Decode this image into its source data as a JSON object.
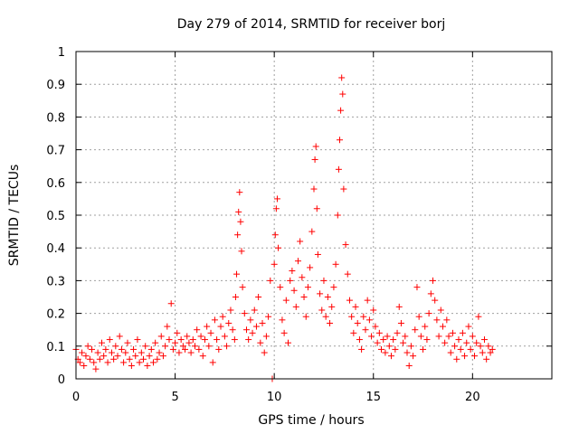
{
  "chart_data": {
    "type": "scatter",
    "title": "Day 279 of 2014, SRMTID for receiver borj",
    "xlabel": "GPS time / hours",
    "ylabel": "SRMTID / TECUs",
    "xlim": [
      0,
      24
    ],
    "ylim": [
      0,
      1
    ],
    "xticks": [
      0,
      5,
      10,
      15,
      20
    ],
    "yticks": [
      0,
      0.1,
      0.2,
      0.3,
      0.4,
      0.5,
      0.6,
      0.7,
      0.8,
      0.9,
      1
    ],
    "xtick_labels": [
      "0",
      "5",
      "10",
      "15",
      "20"
    ],
    "ytick_labels": [
      "0",
      "0.1",
      "0.2",
      "0.3",
      "0.4",
      "0.5",
      "0.6",
      "0.7",
      "0.8",
      "0.9",
      "1"
    ],
    "grid": true,
    "marker": "+",
    "color": "#ff0000",
    "series": [
      {
        "name": "SRMTID",
        "points": [
          [
            0.0,
            0.09
          ],
          [
            0.1,
            0.06
          ],
          [
            0.2,
            0.05
          ],
          [
            0.3,
            0.08
          ],
          [
            0.4,
            0.04
          ],
          [
            0.5,
            0.07
          ],
          [
            0.6,
            0.1
          ],
          [
            0.7,
            0.06
          ],
          [
            0.8,
            0.09
          ],
          [
            0.9,
            0.05
          ],
          [
            1.0,
            0.03
          ],
          [
            1.1,
            0.08
          ],
          [
            1.2,
            0.06
          ],
          [
            1.3,
            0.11
          ],
          [
            1.4,
            0.07
          ],
          [
            1.5,
            0.09
          ],
          [
            1.6,
            0.05
          ],
          [
            1.7,
            0.12
          ],
          [
            1.8,
            0.08
          ],
          [
            1.9,
            0.06
          ],
          [
            2.0,
            0.1
          ],
          [
            2.1,
            0.07
          ],
          [
            2.2,
            0.13
          ],
          [
            2.3,
            0.09
          ],
          [
            2.4,
            0.05
          ],
          [
            2.5,
            0.08
          ],
          [
            2.6,
            0.11
          ],
          [
            2.7,
            0.06
          ],
          [
            2.8,
            0.04
          ],
          [
            2.9,
            0.09
          ],
          [
            3.0,
            0.07
          ],
          [
            3.1,
            0.12
          ],
          [
            3.2,
            0.05
          ],
          [
            3.3,
            0.08
          ],
          [
            3.4,
            0.06
          ],
          [
            3.5,
            0.1
          ],
          [
            3.6,
            0.04
          ],
          [
            3.7,
            0.07
          ],
          [
            3.8,
            0.09
          ],
          [
            3.9,
            0.05
          ],
          [
            4.0,
            0.11
          ],
          [
            4.1,
            0.06
          ],
          [
            4.2,
            0.08
          ],
          [
            4.3,
            0.13
          ],
          [
            4.4,
            0.07
          ],
          [
            4.5,
            0.1
          ],
          [
            4.6,
            0.16
          ],
          [
            4.7,
            0.12
          ],
          [
            4.8,
            0.23
          ],
          [
            4.9,
            0.09
          ],
          [
            5.0,
            0.11
          ],
          [
            5.1,
            0.14
          ],
          [
            5.2,
            0.08
          ],
          [
            5.3,
            0.12
          ],
          [
            5.4,
            0.1
          ],
          [
            5.5,
            0.09
          ],
          [
            5.6,
            0.13
          ],
          [
            5.7,
            0.11
          ],
          [
            5.8,
            0.08
          ],
          [
            5.9,
            0.12
          ],
          [
            6.0,
            0.1
          ],
          [
            6.1,
            0.15
          ],
          [
            6.2,
            0.09
          ],
          [
            6.3,
            0.13
          ],
          [
            6.4,
            0.07
          ],
          [
            6.5,
            0.12
          ],
          [
            6.6,
            0.16
          ],
          [
            6.7,
            0.1
          ],
          [
            6.8,
            0.14
          ],
          [
            6.9,
            0.05
          ],
          [
            7.0,
            0.18
          ],
          [
            7.1,
            0.12
          ],
          [
            7.2,
            0.09
          ],
          [
            7.3,
            0.16
          ],
          [
            7.4,
            0.19
          ],
          [
            7.5,
            0.13
          ],
          [
            7.6,
            0.1
          ],
          [
            7.7,
            0.17
          ],
          [
            7.8,
            0.21
          ],
          [
            7.9,
            0.15
          ],
          [
            8.0,
            0.12
          ],
          [
            8.05,
            0.25
          ],
          [
            8.1,
            0.32
          ],
          [
            8.15,
            0.44
          ],
          [
            8.2,
            0.51
          ],
          [
            8.25,
            0.57
          ],
          [
            8.3,
            0.48
          ],
          [
            8.35,
            0.39
          ],
          [
            8.4,
            0.28
          ],
          [
            8.5,
            0.2
          ],
          [
            8.6,
            0.15
          ],
          [
            8.7,
            0.12
          ],
          [
            8.8,
            0.18
          ],
          [
            8.9,
            0.14
          ],
          [
            9.0,
            0.21
          ],
          [
            9.1,
            0.16
          ],
          [
            9.2,
            0.25
          ],
          [
            9.3,
            0.11
          ],
          [
            9.4,
            0.17
          ],
          [
            9.5,
            0.08
          ],
          [
            9.6,
            0.13
          ],
          [
            9.7,
            0.19
          ],
          [
            9.8,
            0.3
          ],
          [
            9.9,
            0.0
          ],
          [
            10.0,
            0.35
          ],
          [
            10.05,
            0.44
          ],
          [
            10.1,
            0.52
          ],
          [
            10.15,
            0.55
          ],
          [
            10.2,
            0.4
          ],
          [
            10.3,
            0.28
          ],
          [
            10.4,
            0.18
          ],
          [
            10.5,
            0.14
          ],
          [
            10.6,
            0.24
          ],
          [
            10.7,
            0.11
          ],
          [
            10.8,
            0.3
          ],
          [
            10.9,
            0.33
          ],
          [
            11.0,
            0.27
          ],
          [
            11.1,
            0.22
          ],
          [
            11.2,
            0.36
          ],
          [
            11.3,
            0.42
          ],
          [
            11.4,
            0.31
          ],
          [
            11.5,
            0.25
          ],
          [
            11.6,
            0.19
          ],
          [
            11.7,
            0.28
          ],
          [
            11.8,
            0.34
          ],
          [
            11.9,
            0.45
          ],
          [
            12.0,
            0.58
          ],
          [
            12.05,
            0.67
          ],
          [
            12.1,
            0.71
          ],
          [
            12.15,
            0.52
          ],
          [
            12.2,
            0.38
          ],
          [
            12.3,
            0.26
          ],
          [
            12.4,
            0.21
          ],
          [
            12.5,
            0.3
          ],
          [
            12.6,
            0.19
          ],
          [
            12.7,
            0.25
          ],
          [
            12.8,
            0.17
          ],
          [
            12.9,
            0.22
          ],
          [
            13.0,
            0.28
          ],
          [
            13.1,
            0.35
          ],
          [
            13.2,
            0.5
          ],
          [
            13.25,
            0.64
          ],
          [
            13.3,
            0.73
          ],
          [
            13.35,
            0.82
          ],
          [
            13.4,
            0.92
          ],
          [
            13.45,
            0.87
          ],
          [
            13.5,
            0.58
          ],
          [
            13.6,
            0.41
          ],
          [
            13.7,
            0.32
          ],
          [
            13.8,
            0.24
          ],
          [
            13.9,
            0.19
          ],
          [
            14.0,
            0.14
          ],
          [
            14.1,
            0.22
          ],
          [
            14.2,
            0.17
          ],
          [
            14.3,
            0.12
          ],
          [
            14.4,
            0.09
          ],
          [
            14.5,
            0.19
          ],
          [
            14.6,
            0.15
          ],
          [
            14.7,
            0.24
          ],
          [
            14.8,
            0.18
          ],
          [
            14.9,
            0.13
          ],
          [
            15.0,
            0.21
          ],
          [
            15.1,
            0.16
          ],
          [
            15.2,
            0.11
          ],
          [
            15.3,
            0.14
          ],
          [
            15.4,
            0.09
          ],
          [
            15.5,
            0.12
          ],
          [
            15.6,
            0.08
          ],
          [
            15.7,
            0.13
          ],
          [
            15.8,
            0.1
          ],
          [
            15.9,
            0.07
          ],
          [
            16.0,
            0.12
          ],
          [
            16.1,
            0.09
          ],
          [
            16.2,
            0.14
          ],
          [
            16.3,
            0.22
          ],
          [
            16.4,
            0.17
          ],
          [
            16.5,
            0.11
          ],
          [
            16.6,
            0.13
          ],
          [
            16.7,
            0.08
          ],
          [
            16.8,
            0.04
          ],
          [
            16.9,
            0.1
          ],
          [
            17.0,
            0.07
          ],
          [
            17.1,
            0.15
          ],
          [
            17.2,
            0.28
          ],
          [
            17.3,
            0.19
          ],
          [
            17.4,
            0.13
          ],
          [
            17.5,
            0.09
          ],
          [
            17.6,
            0.16
          ],
          [
            17.7,
            0.12
          ],
          [
            17.8,
            0.2
          ],
          [
            17.9,
            0.26
          ],
          [
            18.0,
            0.3
          ],
          [
            18.1,
            0.24
          ],
          [
            18.2,
            0.18
          ],
          [
            18.3,
            0.13
          ],
          [
            18.4,
            0.21
          ],
          [
            18.5,
            0.16
          ],
          [
            18.6,
            0.11
          ],
          [
            18.7,
            0.18
          ],
          [
            18.8,
            0.13
          ],
          [
            18.9,
            0.08
          ],
          [
            19.0,
            0.14
          ],
          [
            19.1,
            0.1
          ],
          [
            19.2,
            0.06
          ],
          [
            19.3,
            0.12
          ],
          [
            19.4,
            0.09
          ],
          [
            19.5,
            0.14
          ],
          [
            19.6,
            0.07
          ],
          [
            19.7,
            0.11
          ],
          [
            19.8,
            0.16
          ],
          [
            19.9,
            0.09
          ],
          [
            20.0,
            0.13
          ],
          [
            20.1,
            0.07
          ],
          [
            20.2,
            0.11
          ],
          [
            20.3,
            0.19
          ],
          [
            20.4,
            0.1
          ],
          [
            20.5,
            0.08
          ],
          [
            20.6,
            0.12
          ],
          [
            20.7,
            0.06
          ],
          [
            20.8,
            0.1
          ],
          [
            20.9,
            0.08
          ],
          [
            21.0,
            0.09
          ]
        ]
      }
    ]
  }
}
